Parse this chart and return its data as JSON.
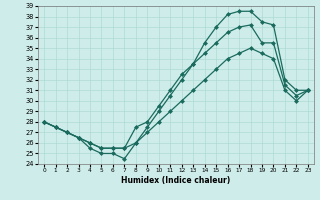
{
  "xlabel": "Humidex (Indice chaleur)",
  "bg_color": "#ceecea",
  "line_color": "#1a6b5e",
  "xlim": [
    -0.5,
    23.5
  ],
  "ylim": [
    24,
    39
  ],
  "xticks": [
    0,
    1,
    2,
    3,
    4,
    5,
    6,
    7,
    8,
    9,
    10,
    11,
    12,
    13,
    14,
    15,
    16,
    17,
    18,
    19,
    20,
    21,
    22,
    23
  ],
  "yticks": [
    24,
    25,
    26,
    27,
    28,
    29,
    30,
    31,
    32,
    33,
    34,
    35,
    36,
    37,
    38,
    39
  ],
  "curve_top_x": [
    0,
    1,
    2,
    3,
    4,
    5,
    6,
    7,
    8,
    9,
    10,
    11,
    12,
    13,
    14,
    15,
    16,
    17,
    18,
    19,
    20,
    21,
    22,
    23
  ],
  "curve_top_y": [
    28,
    27.5,
    27,
    26.5,
    25.5,
    25,
    25,
    24.5,
    26,
    27.5,
    29,
    30.5,
    32,
    33.5,
    35.5,
    37,
    38.2,
    38.5,
    38.5,
    37.5,
    37.2,
    32,
    31,
    31
  ],
  "curve_mid_x": [
    0,
    1,
    2,
    3,
    4,
    5,
    6,
    7,
    8,
    9,
    10,
    11,
    12,
    13,
    14,
    15,
    16,
    17,
    18,
    19,
    20,
    21,
    22,
    23
  ],
  "curve_mid_y": [
    28,
    27.5,
    27,
    26.5,
    26,
    25.5,
    25.5,
    25.5,
    27.5,
    28,
    29.5,
    31,
    32.5,
    33.5,
    34.5,
    35.5,
    36.5,
    37,
    37.2,
    35.5,
    35.5,
    31.5,
    30.5,
    31
  ],
  "curve_bot_x": [
    0,
    1,
    2,
    3,
    4,
    5,
    6,
    7,
    8,
    9,
    10,
    11,
    12,
    13,
    14,
    15,
    16,
    17,
    18,
    19,
    20,
    21,
    22,
    23
  ],
  "curve_bot_y": [
    28,
    27.5,
    27,
    26.5,
    26,
    25.5,
    25.5,
    25.5,
    26,
    27,
    28,
    29,
    30,
    31,
    32,
    33,
    34,
    34.5,
    35,
    34.5,
    34,
    31,
    30,
    31
  ]
}
